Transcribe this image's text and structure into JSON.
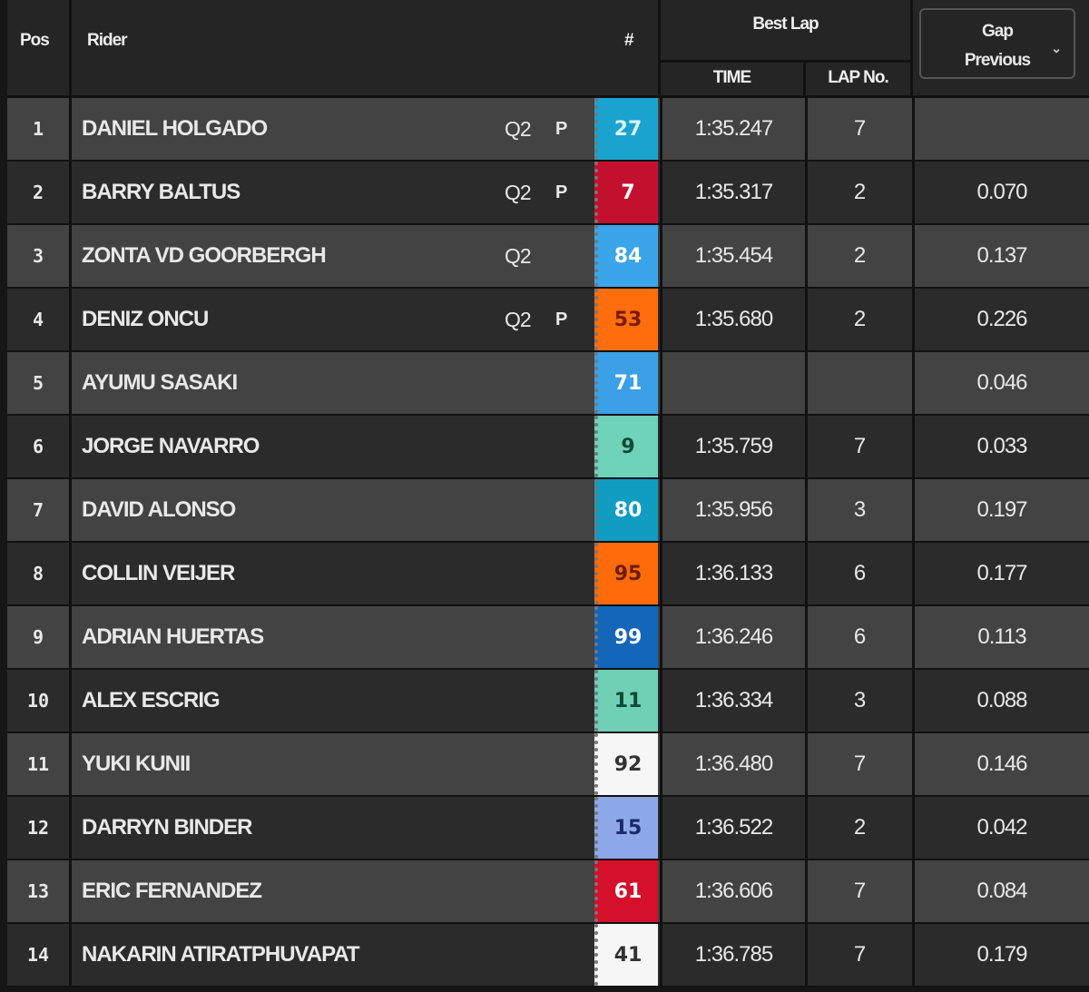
{
  "header": {
    "pos": "Pos",
    "rider": "Rider",
    "number": "#",
    "best_lap": "Best Lap",
    "time": "TIME",
    "lap_no": "LAP No.",
    "gap_selector": {
      "line1": "Gap",
      "line2": "Previous",
      "icon": "chevron-down-icon"
    }
  },
  "rows": [
    {
      "pos": "1",
      "name": "DANIEL HOLGADO",
      "q": "Q2",
      "p": "P",
      "number": "27",
      "bg": "#1ba3cf",
      "fg": "#d8f4ff",
      "time": "1:35.247",
      "lap": "7",
      "gap": ""
    },
    {
      "pos": "2",
      "name": "BARRY BALTUS",
      "q": "Q2",
      "p": "P",
      "number": "7",
      "bg": "#c4102f",
      "fg": "#ffffff",
      "time": "1:35.317",
      "lap": "2",
      "gap": "0.070"
    },
    {
      "pos": "3",
      "name": "ZONTA VD GOORBERGH",
      "q": "Q2",
      "p": "",
      "number": "84",
      "bg": "#3ba5ea",
      "fg": "#ffffff",
      "time": "1:35.454",
      "lap": "2",
      "gap": "0.137"
    },
    {
      "pos": "4",
      "name": "DENIZ ONCU",
      "q": "Q2",
      "p": "P",
      "number": "53",
      "bg": "#ff6d0c",
      "fg": "#7a1b0a",
      "time": "1:35.680",
      "lap": "2",
      "gap": "0.226"
    },
    {
      "pos": "5",
      "name": "AYUMU SASAKI",
      "q": "",
      "p": "",
      "number": "71",
      "bg": "#3ba0e6",
      "fg": "#ffffff",
      "time": "",
      "lap": "",
      "gap": "0.046"
    },
    {
      "pos": "6",
      "name": "JORGE NAVARRO",
      "q": "",
      "p": "",
      "number": "9",
      "bg": "#6ed3b8",
      "fg": "#0e4a36",
      "time": "1:35.759",
      "lap": "7",
      "gap": "0.033"
    },
    {
      "pos": "7",
      "name": "DAVID ALONSO",
      "q": "",
      "p": "",
      "number": "80",
      "bg": "#119cc2",
      "fg": "#ffffff",
      "time": "1:35.956",
      "lap": "3",
      "gap": "0.197"
    },
    {
      "pos": "8",
      "name": "COLLIN VEIJER",
      "q": "",
      "p": "",
      "number": "95",
      "bg": "#ff6a0a",
      "fg": "#6b1e0a",
      "time": "1:36.133",
      "lap": "6",
      "gap": "0.177"
    },
    {
      "pos": "9",
      "name": "ADRIAN HUERTAS",
      "q": "",
      "p": "",
      "number": "99",
      "bg": "#1466b8",
      "fg": "#ffffff",
      "time": "1:36.246",
      "lap": "6",
      "gap": "0.113"
    },
    {
      "pos": "10",
      "name": "ALEX ESCRIG",
      "q": "",
      "p": "",
      "number": "11",
      "bg": "#6fd0b5",
      "fg": "#0e4a36",
      "time": "1:36.334",
      "lap": "3",
      "gap": "0.088"
    },
    {
      "pos": "11",
      "name": "YUKI KUNII",
      "q": "",
      "p": "",
      "number": "92",
      "bg": "#f6f6f6",
      "fg": "#333333",
      "time": "1:36.480",
      "lap": "7",
      "gap": "0.146"
    },
    {
      "pos": "12",
      "name": "DARRYN BINDER",
      "q": "",
      "p": "",
      "number": "15",
      "bg": "#8ca8e8",
      "fg": "#1c2a6a",
      "time": "1:36.522",
      "lap": "2",
      "gap": "0.042"
    },
    {
      "pos": "13",
      "name": "ERIC FERNANDEZ",
      "q": "",
      "p": "",
      "number": "61",
      "bg": "#d4102a",
      "fg": "#ffffff",
      "time": "1:36.606",
      "lap": "7",
      "gap": "0.084"
    },
    {
      "pos": "14",
      "name": "NAKARIN ATIRATPHUVAPAT",
      "q": "",
      "p": "",
      "number": "41",
      "bg": "#f6f6f6",
      "fg": "#333333",
      "time": "1:36.785",
      "lap": "7",
      "gap": "0.179"
    }
  ]
}
